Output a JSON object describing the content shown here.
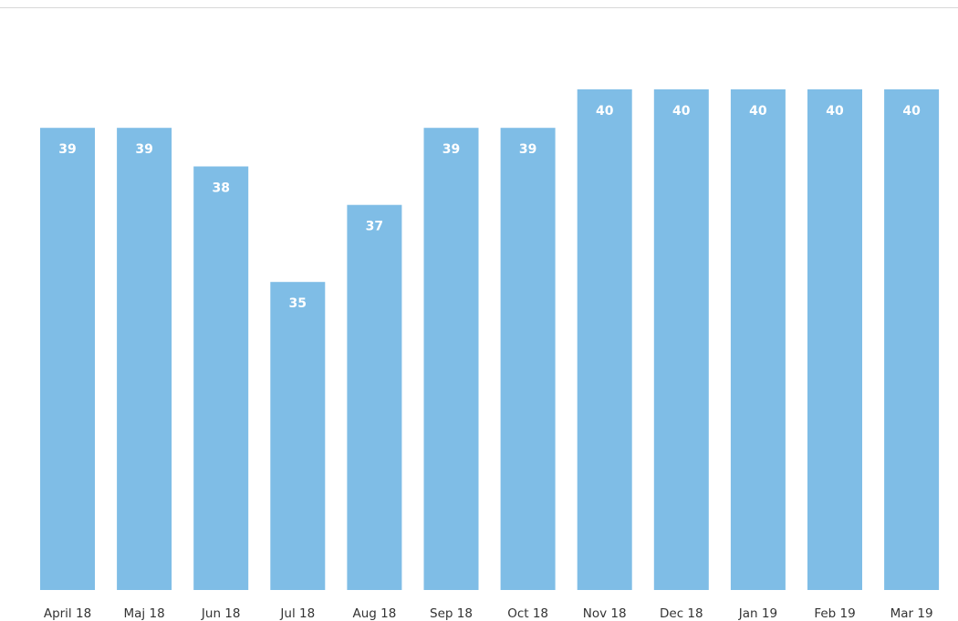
{
  "chart_data": {
    "type": "bar",
    "title": "",
    "xlabel": "",
    "ylabel": "",
    "categories": [
      "April 18",
      "Maj 18",
      "Jun 18",
      "Jul 18",
      "Aug 18",
      "Sep 18",
      "Oct 18",
      "Nov 18",
      "Dec 18",
      "Jan 19",
      "Feb 19",
      "Mar 19"
    ],
    "values": [
      39,
      39,
      38,
      35,
      37,
      39,
      39,
      40,
      40,
      40,
      40,
      40
    ],
    "data_labels": [
      "39",
      "39",
      "38",
      "35",
      "37",
      "39",
      "39",
      "40",
      "40",
      "40",
      "40",
      "40"
    ],
    "ylim": [
      27,
      41
    ],
    "grid": false,
    "legend": "none",
    "bar_color": "#7fbde6"
  }
}
